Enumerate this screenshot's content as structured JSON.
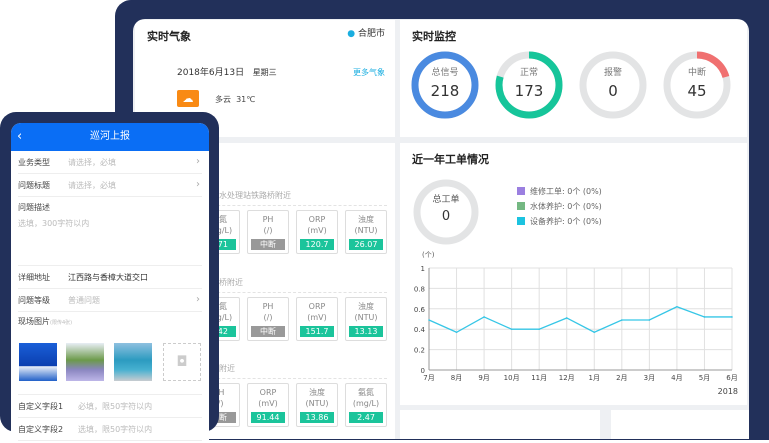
{
  "weather": {
    "title": "实时气象",
    "city": "合肥市",
    "date": "2018年6月13日",
    "weekday": "星期三",
    "more": "更多气象",
    "condition": "多云",
    "temp": "31℃",
    "icon": "partly-cloudy-icon"
  },
  "monitor": {
    "title": "实时监控",
    "rings": [
      {
        "label": "总信号",
        "value": "218",
        "fraction": 1.0,
        "color": "#4a8ae0"
      },
      {
        "label": "正常",
        "value": "173",
        "fraction": 0.794,
        "color": "#16c59a"
      },
      {
        "label": "报警",
        "value": "0",
        "fraction": 0,
        "color": "#e05a5a"
      },
      {
        "label": "中断",
        "value": "45",
        "fraction": 0.206,
        "color": "#f07070"
      }
    ]
  },
  "stations": [
    {
      "name": "水处理站铁路桥附近",
      "cards": [
        {
          "name": "氨氮",
          "unit": "(mg/L)",
          "value": "1.71"
        },
        {
          "name": "PH",
          "unit": "(/)",
          "value": "中断",
          "off": true
        },
        {
          "name": "ORP",
          "unit": "(mV)",
          "value": "120.7"
        },
        {
          "name": "浊度",
          "unit": "(NTU)",
          "value": "26.07"
        }
      ]
    },
    {
      "name": "桥附近",
      "cards": [
        {
          "name": "氨氮",
          "unit": "(mg/L)",
          "value": "1.42"
        },
        {
          "name": "PH",
          "unit": "(/)",
          "value": "中断",
          "off": true
        },
        {
          "name": "ORP",
          "unit": "(mV)",
          "value": "151.7"
        },
        {
          "name": "浊度",
          "unit": "(NTU)",
          "value": "13.13"
        }
      ]
    },
    {
      "name": "附近",
      "cards": [
        {
          "name": "PH",
          "unit": "(/)",
          "value": "中断",
          "off": true
        },
        {
          "name": "ORP",
          "unit": "(mV)",
          "value": "91.44"
        },
        {
          "name": "浊度",
          "unit": "(NTU)",
          "value": "13.86"
        },
        {
          "name": "氨氮",
          "unit": "(mg/L)",
          "value": "2.47"
        }
      ]
    }
  ],
  "workorders": {
    "title": "近一年工单情况",
    "total_label": "总工单",
    "total": "0",
    "legend": [
      {
        "label": "维修工单:  0个  (0%)",
        "color": "#9b7fe0"
      },
      {
        "label": "水体养护:  0个  (0%)",
        "color": "#74b882"
      },
      {
        "label": "设备养护:  0个  (0%)",
        "color": "#1cc3e0"
      }
    ]
  },
  "chart_data": {
    "type": "line",
    "ylabel": "(个)",
    "year_label": "2018",
    "ylim": [
      0,
      1
    ],
    "yticks": [
      "0",
      "0.2",
      "0.4",
      "0.6",
      "0.8",
      "1"
    ],
    "categories": [
      "7月",
      "8月",
      "9月",
      "10月",
      "11月",
      "12月",
      "1月",
      "2月",
      "3月",
      "4月",
      "5月",
      "6月"
    ],
    "values": [
      0.49,
      0.37,
      0.52,
      0.4,
      0.4,
      0.51,
      0.37,
      0.49,
      0.49,
      0.62,
      0.52,
      0.52
    ],
    "color": "#36c6e6",
    "grid": true
  },
  "mobile": {
    "title": "巡河上报",
    "rows": [
      {
        "k": "业务类型",
        "p": "请选择，必填",
        "arrow": true
      },
      {
        "k": "问题标题",
        "p": "请选择，必填",
        "arrow": true
      }
    ],
    "desc_label": "问题描述",
    "desc_placeholder": "选填，300字符以内",
    "address_label": "详细地址",
    "address_value": "江西路与香樟大道交口",
    "level_label": "问题等级",
    "level_value": "普通问题",
    "photos_label": "现场图片",
    "photos_hint": "(限传4张)",
    "custom1_label": "自定义字段1",
    "custom1_placeholder": "必填，限50字符以内",
    "custom2_label": "自定义字段2",
    "custom2_placeholder": "选填，限50字符以内"
  }
}
